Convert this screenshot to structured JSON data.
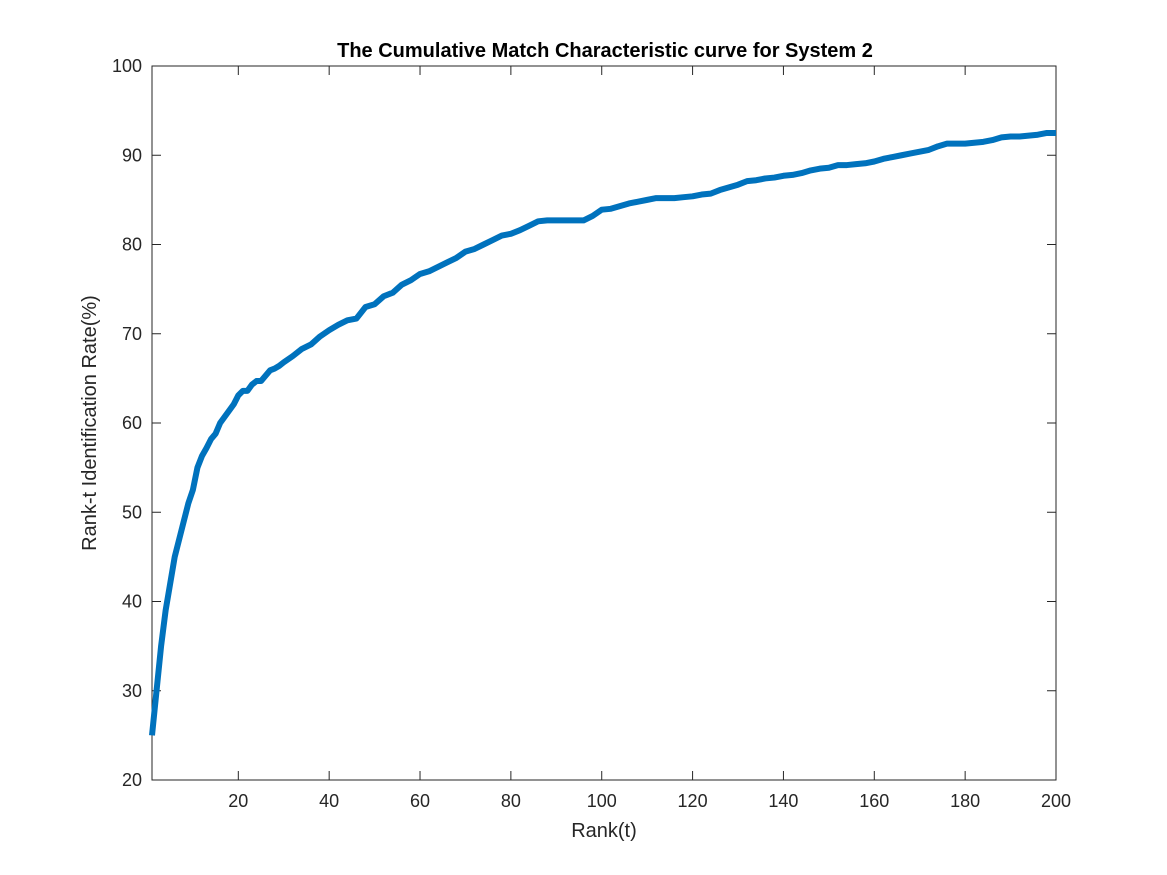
{
  "chart_data": {
    "type": "line",
    "title": "The Cumulative Match Characteristic curve for System 2",
    "xlabel": "Rank(t)",
    "ylabel": "Rank-t Identification Rate(%)",
    "xlim": [
      1,
      200
    ],
    "ylim": [
      20,
      100
    ],
    "xticks": [
      20,
      40,
      60,
      80,
      100,
      120,
      140,
      160,
      180,
      200
    ],
    "yticks": [
      20,
      30,
      40,
      50,
      60,
      70,
      80,
      90,
      100
    ],
    "grid": false,
    "legend": "none",
    "line_color": "#0072BD",
    "series": [
      {
        "x": [
          1,
          2,
          3,
          4,
          5,
          6,
          7,
          8,
          9,
          10,
          11,
          12,
          13,
          14,
          15,
          16,
          17,
          18,
          19,
          20,
          21,
          22,
          23,
          24,
          25,
          26,
          27,
          28,
          29,
          30,
          32,
          34,
          36,
          38,
          40,
          42,
          44,
          46,
          48,
          50,
          52,
          54,
          56,
          58,
          60,
          62,
          64,
          66,
          68,
          70,
          72,
          74,
          76,
          78,
          80,
          82,
          84,
          86,
          88,
          90,
          92,
          94,
          96,
          98,
          100,
          102,
          104,
          106,
          108,
          110,
          112,
          114,
          116,
          118,
          120,
          122,
          124,
          126,
          128,
          130,
          132,
          134,
          136,
          138,
          140,
          142,
          144,
          146,
          148,
          150,
          152,
          154,
          156,
          158,
          160,
          162,
          164,
          166,
          168,
          170,
          172,
          174,
          176,
          178,
          180,
          182,
          184,
          186,
          188,
          190,
          192,
          194,
          196,
          198,
          200
        ],
        "y": [
          25,
          30,
          35,
          39,
          42,
          45,
          47,
          49,
          51,
          52.5,
          55,
          56.3,
          57.2,
          58.2,
          58.8,
          60,
          60.7,
          61.4,
          62.1,
          63.1,
          63.6,
          63.6,
          64.3,
          64.7,
          64.7,
          65.3,
          65.9,
          66.1,
          66.4,
          66.8,
          67.5,
          68.3,
          68.8,
          69.7,
          70.4,
          71,
          71.5,
          71.7,
          73,
          73.3,
          74.2,
          74.6,
          75.5,
          76,
          76.7,
          77,
          77.5,
          78,
          78.5,
          79.2,
          79.5,
          80,
          80.5,
          81,
          81.2,
          81.6,
          82.1,
          82.6,
          82.7,
          82.7,
          82.7,
          82.7,
          82.7,
          83.2,
          83.9,
          84,
          84.3,
          84.6,
          84.8,
          85,
          85.2,
          85.2,
          85.2,
          85.3,
          85.4,
          85.6,
          85.7,
          86.1,
          86.4,
          86.7,
          87.1,
          87.2,
          87.4,
          87.5,
          87.7,
          87.8,
          88,
          88.3,
          88.5,
          88.6,
          88.9,
          88.9,
          89,
          89.1,
          89.3,
          89.6,
          89.8,
          90,
          90.2,
          90.4,
          90.6,
          91,
          91.3,
          91.3,
          91.3,
          91.4,
          91.5,
          91.7,
          92,
          92.1,
          92.1,
          92.2,
          92.3,
          92.5,
          92.5
        ]
      }
    ]
  }
}
